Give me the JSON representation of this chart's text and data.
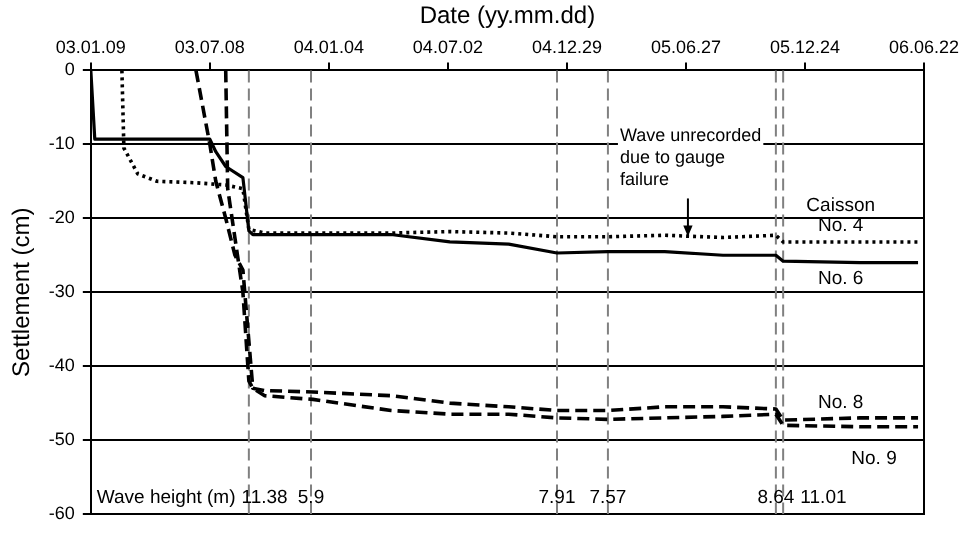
{
  "chart_data": {
    "type": "line",
    "xlabel": "Date (yy.mm.dd)",
    "ylabel": "Settlement (cm)",
    "xlim": [
      "2003-01-09",
      "2006-06-22"
    ],
    "xticks": [
      {
        "value": "2003-01-09",
        "label": "03.01.09"
      },
      {
        "value": "2003-07-08",
        "label": "03.07.08"
      },
      {
        "value": "2004-01-04",
        "label": "04.01.04"
      },
      {
        "value": "2004-07-02",
        "label": "04.07.02"
      },
      {
        "value": "2004-12-29",
        "label": "04.12.29"
      },
      {
        "value": "2005-06-27",
        "label": "05.06.27"
      },
      {
        "value": "2005-12-24",
        "label": "05.12.24"
      },
      {
        "value": "2006-06-22",
        "label": "06.06.22"
      }
    ],
    "ylim": [
      -60,
      0
    ],
    "yticks": [
      0,
      -10,
      -20,
      -30,
      -40,
      -50,
      -60
    ],
    "grid": "y",
    "legend": false,
    "marker": "none",
    "series": [
      {
        "name": "Caisson No. 4",
        "color": "#000000",
        "line_style": "dotted",
        "x": [
          "2003-02-25",
          "2003-02-28",
          "2003-03-21",
          "2003-04-19",
          "2003-06-17",
          "2003-08-01",
          "2003-08-27",
          "2003-09-05",
          "2003-09-29",
          "2004-04-07",
          "2004-07-05",
          "2004-10-02",
          "2004-12-14",
          "2005-03-01",
          "2005-05-26",
          "2005-08-22",
          "2005-11-10",
          "2005-11-21",
          "2006-03-17",
          "2006-06-13"
        ],
        "values": [
          0,
          -10.5,
          -14,
          -15,
          -15.2,
          -15.5,
          -16,
          -21.5,
          -22,
          -22,
          -21.8,
          -22,
          -22.5,
          -22.5,
          -22.3,
          -22.6,
          -22.3,
          -23.2,
          -23.2,
          -23.2
        ]
      },
      {
        "name": "No. 6",
        "color": "#000000",
        "line_style": "solid",
        "x": [
          "2003-01-09",
          "2003-01-15",
          "2003-07-08",
          "2003-07-17",
          "2003-08-01",
          "2003-08-27",
          "2003-09-05",
          "2003-09-11",
          "2004-04-07",
          "2004-07-05",
          "2004-10-02",
          "2004-12-14",
          "2005-03-01",
          "2005-05-26",
          "2005-08-22",
          "2005-11-10",
          "2005-11-21",
          "2006-03-17",
          "2006-06-13"
        ],
        "values": [
          0,
          -9.3,
          -9.3,
          -11,
          -13,
          -14.5,
          -21.7,
          -22.2,
          -22.2,
          -23.2,
          -23.5,
          -24.7,
          -24.5,
          -24.5,
          -25,
          -25,
          -25.8,
          -26,
          -26
        ]
      },
      {
        "name": "No. 8",
        "color": "#000000",
        "line_style": "dashed",
        "x": [
          "2003-06-17",
          "2003-07-08",
          "2003-07-17",
          "2003-08-01",
          "2003-08-15",
          "2003-08-27",
          "2003-09-11",
          "2003-09-29",
          "2003-12-11",
          "2004-04-07",
          "2004-07-05",
          "2004-10-02",
          "2004-12-14",
          "2005-03-01",
          "2005-05-26",
          "2005-08-22",
          "2005-11-10",
          "2005-11-21",
          "2006-03-17",
          "2006-06-13"
        ],
        "values": [
          0,
          -10,
          -15,
          -20,
          -25,
          -27,
          -43,
          -43.3,
          -43.5,
          -44,
          -45,
          -45.5,
          -46,
          -46,
          -45.5,
          -45.5,
          -45.8,
          -47.3,
          -47,
          -47
        ]
      },
      {
        "name": "No. 9",
        "color": "#000000",
        "line_style": "dashed",
        "x": [
          "2003-08-01",
          "2003-08-04",
          "2003-08-27",
          "2003-09-05",
          "2003-09-11",
          "2003-09-29",
          "2003-12-11",
          "2004-04-07",
          "2004-07-05",
          "2004-10-02",
          "2004-12-14",
          "2005-03-01",
          "2005-05-26",
          "2005-08-22",
          "2005-11-10",
          "2005-11-21",
          "2006-03-17",
          "2006-06-13"
        ],
        "values": [
          0,
          -16,
          -30,
          -42,
          -43,
          -44,
          -44.5,
          -46,
          -46.5,
          -46.5,
          -47,
          -47.2,
          -47,
          -46.8,
          -46.5,
          -48,
          -48.2,
          -48.2
        ]
      }
    ],
    "ref_lines": [
      {
        "axis": "x",
        "value": "2003-09-05",
        "label": "11.38",
        "color": "#808080",
        "line_style": "dashed"
      },
      {
        "axis": "x",
        "value": "2003-12-08",
        "label": "5.9",
        "color": "#808080",
        "line_style": "dashed"
      },
      {
        "axis": "x",
        "value": "2004-12-14",
        "label": "7.91",
        "color": "#808080",
        "line_style": "dashed"
      },
      {
        "axis": "x",
        "value": "2005-03-01",
        "label": "7.57",
        "color": "#808080",
        "line_style": "dashed"
      },
      {
        "axis": "x",
        "value": "2005-11-10",
        "label": "8.64",
        "color": "#808080",
        "line_style": "dashed"
      },
      {
        "axis": "x",
        "value": "2005-11-21",
        "label": "11.01",
        "color": "#808080",
        "line_style": "dashed"
      }
    ],
    "annotations": [
      "Wave height (m)",
      {
        "text": "Wave unrecorded due to gauge failure",
        "x": "2005-06-30",
        "y": -23
      }
    ]
  }
}
